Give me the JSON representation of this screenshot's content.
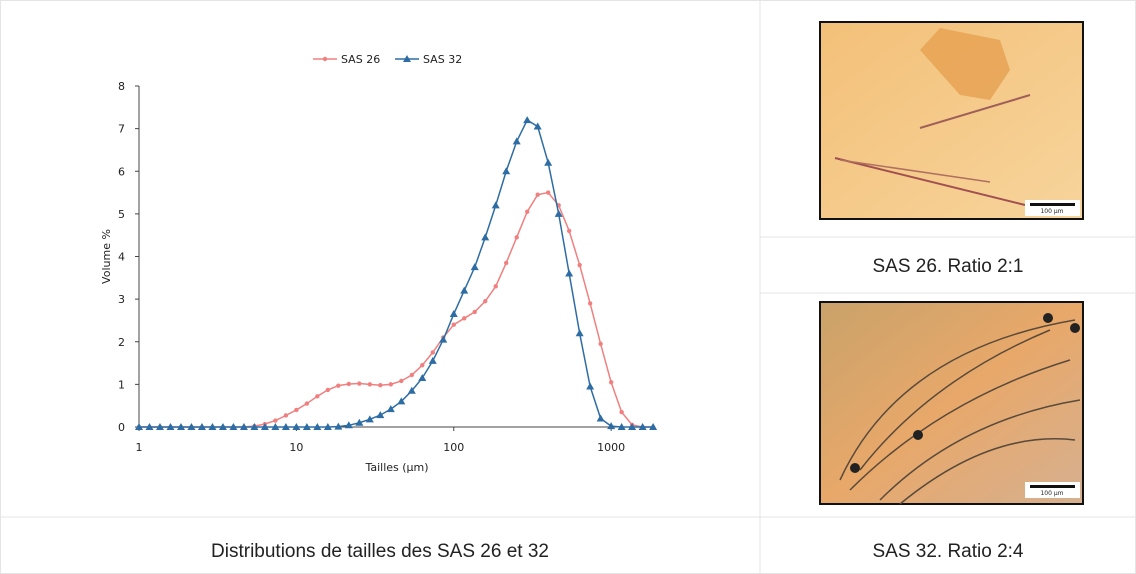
{
  "chart_data": {
    "type": "line",
    "x": [
      1,
      1.166,
      1.359,
      1.585,
      1.848,
      2.154,
      2.512,
      2.929,
      3.415,
      3.981,
      4.642,
      5.412,
      6.31,
      7.356,
      8.577,
      10,
      11.66,
      13.59,
      15.85,
      18.48,
      21.54,
      25.12,
      29.29,
      34.15,
      39.81,
      46.42,
      54.12,
      63.1,
      73.56,
      85.77,
      100,
      116.6,
      135.9,
      158.5,
      184.8,
      215.4,
      251.2,
      292.9,
      341.5,
      398.1,
      464.2,
      541.2,
      631,
      735.6,
      857.7,
      1000,
      1166,
      1359,
      1585,
      1848
    ],
    "series": [
      {
        "name": "SAS 26",
        "color": "#f08080",
        "marker": "circle",
        "values": [
          0,
          0,
          0,
          0,
          0,
          0,
          0,
          0,
          0,
          0,
          0,
          0.02,
          0.07,
          0.15,
          0.27,
          0.4,
          0.55,
          0.72,
          0.87,
          0.97,
          1.01,
          1.02,
          1,
          0.98,
          1,
          1.08,
          1.22,
          1.45,
          1.75,
          2.1,
          2.4,
          2.55,
          2.7,
          2.95,
          3.3,
          3.85,
          4.45,
          5.05,
          5.45,
          5.5,
          5.2,
          4.6,
          3.8,
          2.9,
          1.95,
          1.05,
          0.35,
          0.05,
          0,
          0
        ]
      },
      {
        "name": "SAS 32",
        "color": "#2e6da4",
        "marker": "triangle",
        "values": [
          0,
          0,
          0,
          0,
          0,
          0,
          0,
          0,
          0,
          0,
          0,
          0,
          0,
          0,
          0,
          0,
          0,
          0,
          0,
          0.01,
          0.04,
          0.1,
          0.18,
          0.28,
          0.42,
          0.6,
          0.85,
          1.15,
          1.55,
          2.05,
          2.65,
          3.2,
          3.75,
          4.45,
          5.2,
          6,
          6.7,
          7.2,
          7.05,
          6.2,
          5,
          3.6,
          2.2,
          0.95,
          0.2,
          0.02,
          0,
          0,
          0,
          0
        ]
      }
    ],
    "x_label": "Tailles (µm)",
    "y_label": "Volume %",
    "xscale": "log",
    "xlim": [
      1,
      1900
    ],
    "xticks": [
      1,
      10,
      100,
      1000
    ],
    "ylim": [
      0,
      8
    ],
    "yticks": [
      0,
      1,
      2,
      3,
      4,
      5,
      6,
      7,
      8
    ],
    "grid": false,
    "legend": "top"
  },
  "captions": {
    "chart": "Distributions de tailles des SAS 26 et 32",
    "image_1": "SAS 26. Ratio 2:1",
    "image_2": "SAS 32. Ratio 2:4"
  },
  "images": [
    {
      "scale_bar": "100 µm"
    },
    {
      "scale_bar": "100 µm"
    }
  ]
}
